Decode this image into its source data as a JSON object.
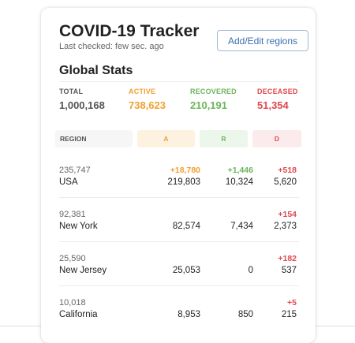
{
  "app": {
    "title": "COVID-19 Tracker",
    "last_checked": "Last checked: few sec. ago",
    "edit_button_label": "Add/Edit regions"
  },
  "global": {
    "title": "Global Stats",
    "total": {
      "label": "TOTAL",
      "value": "1,000,168"
    },
    "active": {
      "label": "ACTIVE",
      "value": "738,623"
    },
    "recovered": {
      "label": "RECOVERED",
      "value": "210,191"
    },
    "deceased": {
      "label": "DECEASED",
      "value": "51,354"
    }
  },
  "table": {
    "headers": {
      "region": "REGION",
      "active": "A",
      "recovered": "R",
      "deceased": "D"
    },
    "rows": [
      {
        "count": "235,747",
        "name": "USA",
        "active_delta": "+18,780",
        "active": "219,803",
        "recovered_delta": "+1,446",
        "recovered": "10,324",
        "deceased_delta": "+518",
        "deceased": "5,620"
      },
      {
        "count": "92,381",
        "name": "New York",
        "active_delta": "",
        "active": "82,574",
        "recovered_delta": "",
        "recovered": "7,434",
        "deceased_delta": "+154",
        "deceased": "2,373"
      },
      {
        "count": "25,590",
        "name": "New Jersey",
        "active_delta": "",
        "active": "25,053",
        "recovered_delta": "",
        "recovered": "0",
        "deceased_delta": "+182",
        "deceased": "537"
      },
      {
        "count": "10,018",
        "name": "California",
        "active_delta": "",
        "active": "8,953",
        "recovered_delta": "",
        "recovered": "850",
        "deceased_delta": "+5",
        "deceased": "215"
      }
    ]
  },
  "colors": {
    "active": "#f0a030",
    "recovered": "#6bb55a",
    "deceased": "#e0484f",
    "muted": "#555555",
    "button": "#3b6fb0"
  }
}
